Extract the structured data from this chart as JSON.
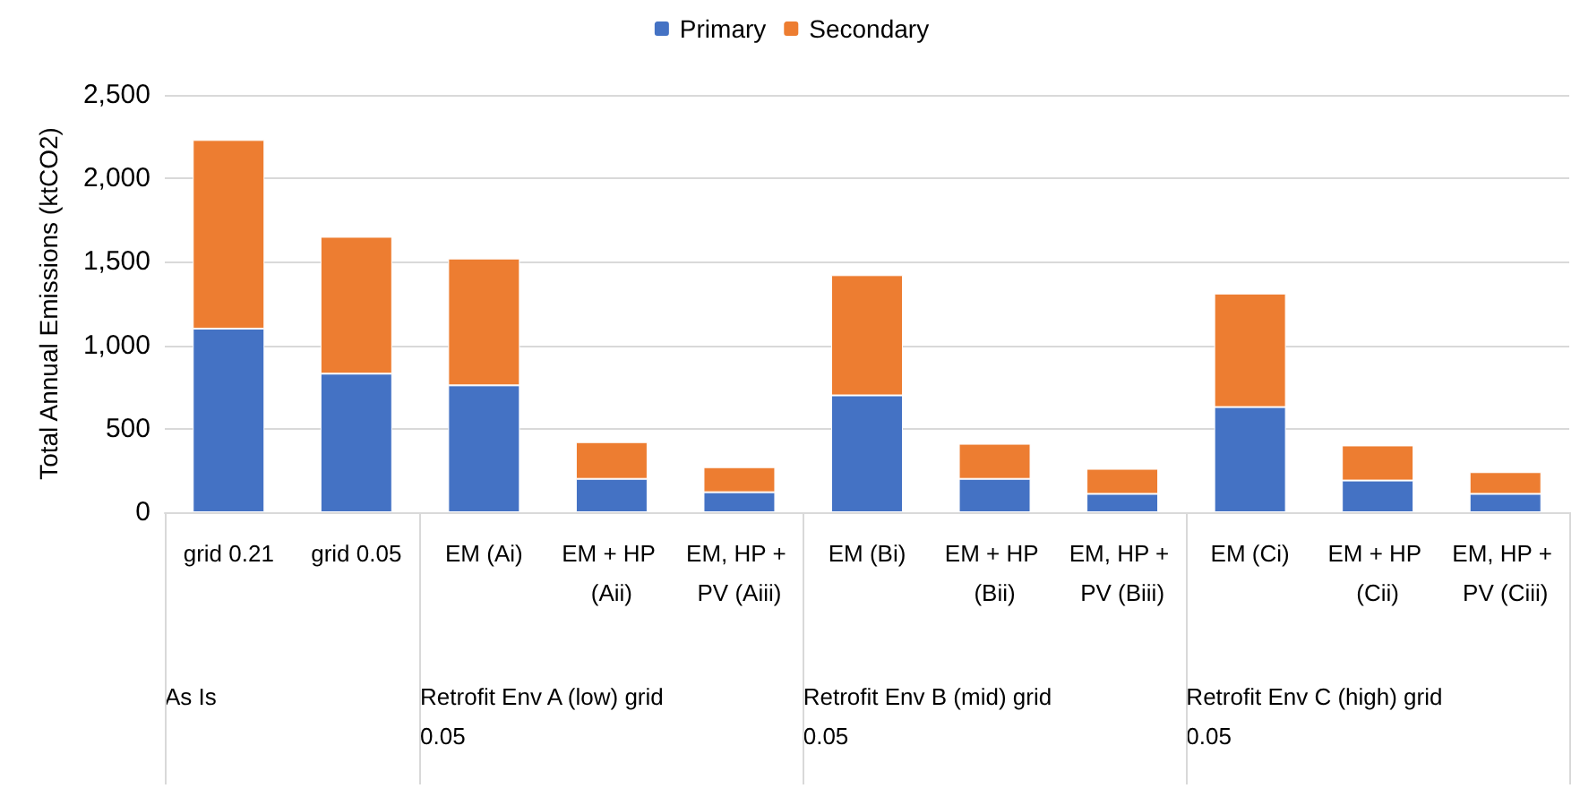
{
  "chart_data": {
    "type": "bar",
    "stacked": true,
    "ylabel": "Total Annual Emissions (ktCO2)",
    "categories": [
      "grid 0.21",
      "grid 0.05",
      "EM (Ai)",
      "EM + HP (Aii)",
      "EM, HP + PV (Aiii)",
      "EM (Bi)",
      "EM + HP (Bii)",
      "EM, HP + PV (Biii)",
      "EM (Ci)",
      "EM + HP (Cii)",
      "EM, HP + PV (Ciii)"
    ],
    "series": [
      {
        "name": "Primary",
        "color": "#4472c4",
        "values": [
          1100,
          830,
          760,
          200,
          120,
          700,
          200,
          110,
          630,
          190,
          110
        ]
      },
      {
        "name": "Secondary",
        "color": "#ed7d31",
        "values": [
          1130,
          820,
          760,
          220,
          150,
          720,
          210,
          150,
          680,
          210,
          130
        ]
      }
    ],
    "annotations": [
      "As Is",
      "Retrofit Env A (low) grid 0.05",
      "Retrofit Env B (mid) grid 0.05",
      "Retrofit Env C (high) grid 0.05"
    ],
    "ylim": [
      0,
      2500
    ],
    "yticks": [
      {
        "value": 0,
        "label": "0"
      },
      {
        "value": 500,
        "label": "500"
      },
      {
        "value": 1000,
        "label": "1,000"
      },
      {
        "value": 1500,
        "label": "1,500"
      },
      {
        "value": 2000,
        "label": "2,000"
      },
      {
        "value": 2500,
        "label": "2,500"
      }
    ],
    "grid": "y",
    "legend": "top"
  }
}
